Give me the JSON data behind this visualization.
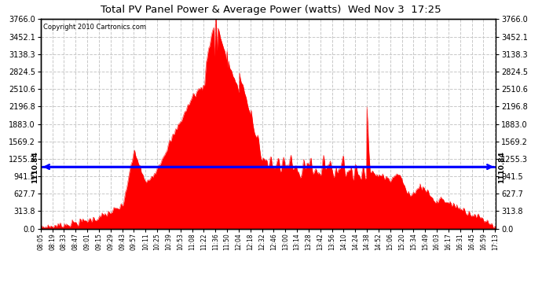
{
  "title": "Total PV Panel Power & Average Power (watts)  Wed Nov 3  17:25",
  "copyright": "Copyright 2010 Cartronics.com",
  "average_power": 1110.84,
  "y_max": 3766.0,
  "y_ticks": [
    0.0,
    313.8,
    627.7,
    941.5,
    1255.3,
    1569.2,
    1883.0,
    2196.8,
    2510.6,
    2824.5,
    3138.3,
    3452.1,
    3766.0
  ],
  "fill_color": "#FF0000",
  "line_color": "#0000FF",
  "grid_color": "#C8C8C8",
  "background_color": "#FFFFFF",
  "x_labels": [
    "08:05",
    "08:19",
    "08:33",
    "08:47",
    "09:01",
    "09:15",
    "09:29",
    "09:43",
    "09:57",
    "10:11",
    "10:25",
    "10:39",
    "10:53",
    "11:08",
    "11:22",
    "11:36",
    "11:50",
    "12:04",
    "12:18",
    "12:32",
    "12:46",
    "13:00",
    "13:14",
    "13:28",
    "13:42",
    "13:56",
    "14:10",
    "14:24",
    "14:38",
    "14:52",
    "15:06",
    "15:20",
    "15:34",
    "15:49",
    "16:03",
    "16:17",
    "16:31",
    "16:45",
    "16:59",
    "17:13"
  ]
}
